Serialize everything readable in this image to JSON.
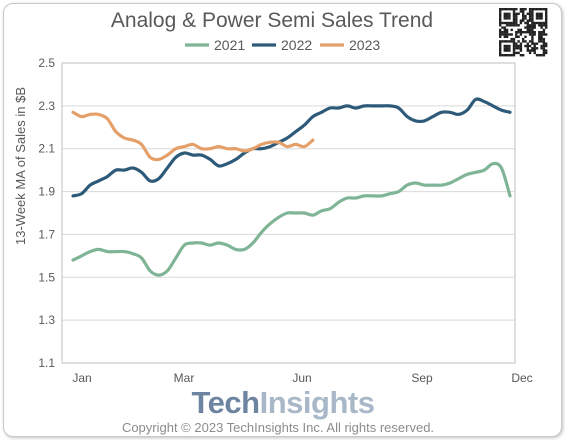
{
  "chart_data": {
    "type": "line",
    "title": "Analog & Power Semi Sales Trend",
    "ylabel": "13-Week MA of Sales in $B",
    "xlabel": "",
    "x_ticks": [
      "Jan",
      "Mar",
      "Jun",
      "Sep",
      "Dec"
    ],
    "y_ticks": [
      "2.5",
      "2.3",
      "2.1",
      "1.9",
      "1.7",
      "1.5",
      "1.3",
      "1.1"
    ],
    "ylim": [
      1.1,
      2.5
    ],
    "x_unit": "week of year",
    "xlim": [
      1,
      52
    ],
    "grid": "horizontal",
    "legend": "top",
    "series": [
      {
        "name": "2021",
        "color": "#7fb596",
        "x": [
          1,
          2,
          3,
          4,
          5,
          6,
          7,
          8,
          9,
          10,
          11,
          12,
          13,
          14,
          15,
          16,
          17,
          18,
          19,
          20,
          21,
          22,
          23,
          24,
          25,
          26,
          27,
          28,
          29,
          30,
          31,
          32,
          33,
          34,
          35,
          36,
          37,
          38,
          39,
          40,
          41,
          42,
          43,
          44,
          45,
          46,
          47,
          48,
          49,
          50,
          51,
          52
        ],
        "values": [
          1.58,
          1.6,
          1.62,
          1.63,
          1.62,
          1.62,
          1.62,
          1.61,
          1.59,
          1.53,
          1.51,
          1.53,
          1.59,
          1.65,
          1.66,
          1.66,
          1.65,
          1.66,
          1.65,
          1.63,
          1.63,
          1.66,
          1.71,
          1.75,
          1.78,
          1.8,
          1.8,
          1.8,
          1.79,
          1.81,
          1.82,
          1.85,
          1.87,
          1.87,
          1.88,
          1.88,
          1.88,
          1.89,
          1.9,
          1.93,
          1.94,
          1.93,
          1.93,
          1.93,
          1.94,
          1.96,
          1.98,
          1.99,
          2.0,
          2.03,
          2.01,
          1.88
        ]
      },
      {
        "name": "2022",
        "color": "#2e5a7a",
        "x": [
          1,
          2,
          3,
          4,
          5,
          6,
          7,
          8,
          9,
          10,
          11,
          12,
          13,
          14,
          15,
          16,
          17,
          18,
          19,
          20,
          21,
          22,
          23,
          24,
          25,
          26,
          27,
          28,
          29,
          30,
          31,
          32,
          33,
          34,
          35,
          36,
          37,
          38,
          39,
          40,
          41,
          42,
          43,
          44,
          45,
          46,
          47,
          48,
          49,
          50,
          51,
          52
        ],
        "values": [
          1.88,
          1.89,
          1.93,
          1.95,
          1.97,
          2.0,
          2.0,
          2.01,
          1.99,
          1.95,
          1.96,
          2.01,
          2.06,
          2.08,
          2.07,
          2.07,
          2.05,
          2.02,
          2.03,
          2.05,
          2.08,
          2.1,
          2.1,
          2.11,
          2.13,
          2.15,
          2.18,
          2.21,
          2.25,
          2.27,
          2.29,
          2.29,
          2.3,
          2.29,
          2.3,
          2.3,
          2.3,
          2.3,
          2.29,
          2.25,
          2.23,
          2.23,
          2.25,
          2.27,
          2.27,
          2.26,
          2.28,
          2.33,
          2.32,
          2.3,
          2.28,
          2.27
        ]
      },
      {
        "name": "2023",
        "color": "#e5a06a",
        "x": [
          1,
          2,
          3,
          4,
          5,
          6,
          7,
          8,
          9,
          10,
          11,
          12,
          13,
          14,
          15,
          16,
          17,
          18,
          19,
          20,
          21,
          22,
          23,
          24,
          25,
          26,
          27,
          28,
          29
        ],
        "values": [
          2.27,
          2.25,
          2.26,
          2.26,
          2.24,
          2.18,
          2.15,
          2.14,
          2.12,
          2.06,
          2.05,
          2.07,
          2.1,
          2.11,
          2.12,
          2.1,
          2.1,
          2.11,
          2.1,
          2.1,
          2.09,
          2.1,
          2.12,
          2.13,
          2.13,
          2.11,
          2.12,
          2.11,
          2.14
        ]
      }
    ]
  },
  "branding": {
    "logo_part1": "Tech",
    "logo_part2": "Insights",
    "copyright": "Copyright © 2023 TechInsights Inc.  All rights reserved."
  },
  "colors": {
    "grid": "#d9d9d9",
    "axis": "#bfbfbf",
    "text": "#595959"
  }
}
